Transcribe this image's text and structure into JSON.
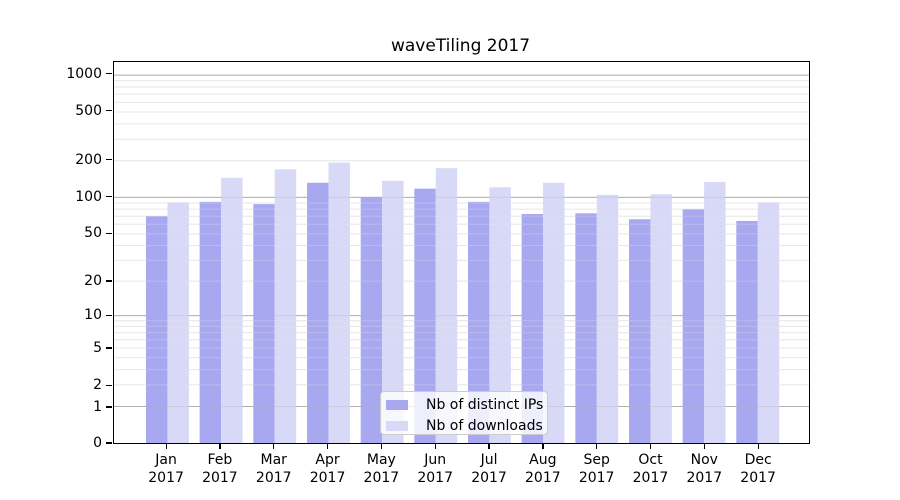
{
  "figure": {
    "background": "#ffffff"
  },
  "chart_data": {
    "type": "bar",
    "title": "waveTiling 2017",
    "categories": [
      "Jan 2017",
      "Feb 2017",
      "Mar 2017",
      "Apr 2017",
      "May 2017",
      "Jun 2017",
      "Jul 2017",
      "Aug 2017",
      "Sep 2017",
      "Oct 2017",
      "Nov 2017",
      "Dec 2017"
    ],
    "series": [
      {
        "name": "Nb of distinct IPs",
        "color": "#a8a8f0",
        "values": [
          70,
          92,
          88,
          132,
          101,
          118,
          92,
          73,
          74,
          66,
          80,
          64
        ]
      },
      {
        "name": "Nb of downloads",
        "color": "#d8d8f7",
        "values": [
          91,
          145,
          170,
          193,
          137,
          174,
          121,
          132,
          105,
          106,
          134,
          91
        ]
      }
    ],
    "xlabel": "",
    "ylabel": "",
    "yscale": "log1p",
    "yticks": [
      0,
      1,
      2,
      5,
      10,
      20,
      50,
      100,
      200,
      500,
      1000
    ],
    "ylim": [
      0,
      1250
    ],
    "grid": {
      "major_color": "#b0b0b0",
      "minor_color": "#e7e7e7",
      "minor_multiples": [
        2,
        3,
        4,
        5,
        6,
        7,
        8,
        9
      ],
      "minor_decades": [
        1,
        10,
        100
      ]
    },
    "legend_position": "lower center"
  }
}
